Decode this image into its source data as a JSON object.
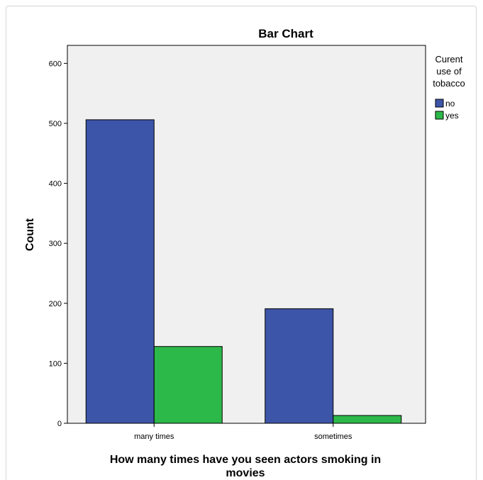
{
  "chart_data": {
    "type": "bar",
    "title": "Bar Chart",
    "categories": [
      "many times",
      "sometimes"
    ],
    "series": [
      {
        "name": "no",
        "values": [
          506,
          191
        ],
        "color": "#3d55a8"
      },
      {
        "name": "yes",
        "values": [
          128,
          13
        ],
        "color": "#2db84a"
      }
    ],
    "ylabel": "Count",
    "xlabel_lines": [
      "How many times have you seen actors smoking in",
      "movies"
    ],
    "ylim": [
      0,
      630
    ],
    "yticks": [
      0,
      100,
      200,
      300,
      400,
      500,
      600
    ],
    "legend": {
      "title_lines": [
        "Curent",
        "use of",
        "tobacco"
      ],
      "placement": "right"
    },
    "plot_background": "#f0f0f0",
    "grid": false
  }
}
